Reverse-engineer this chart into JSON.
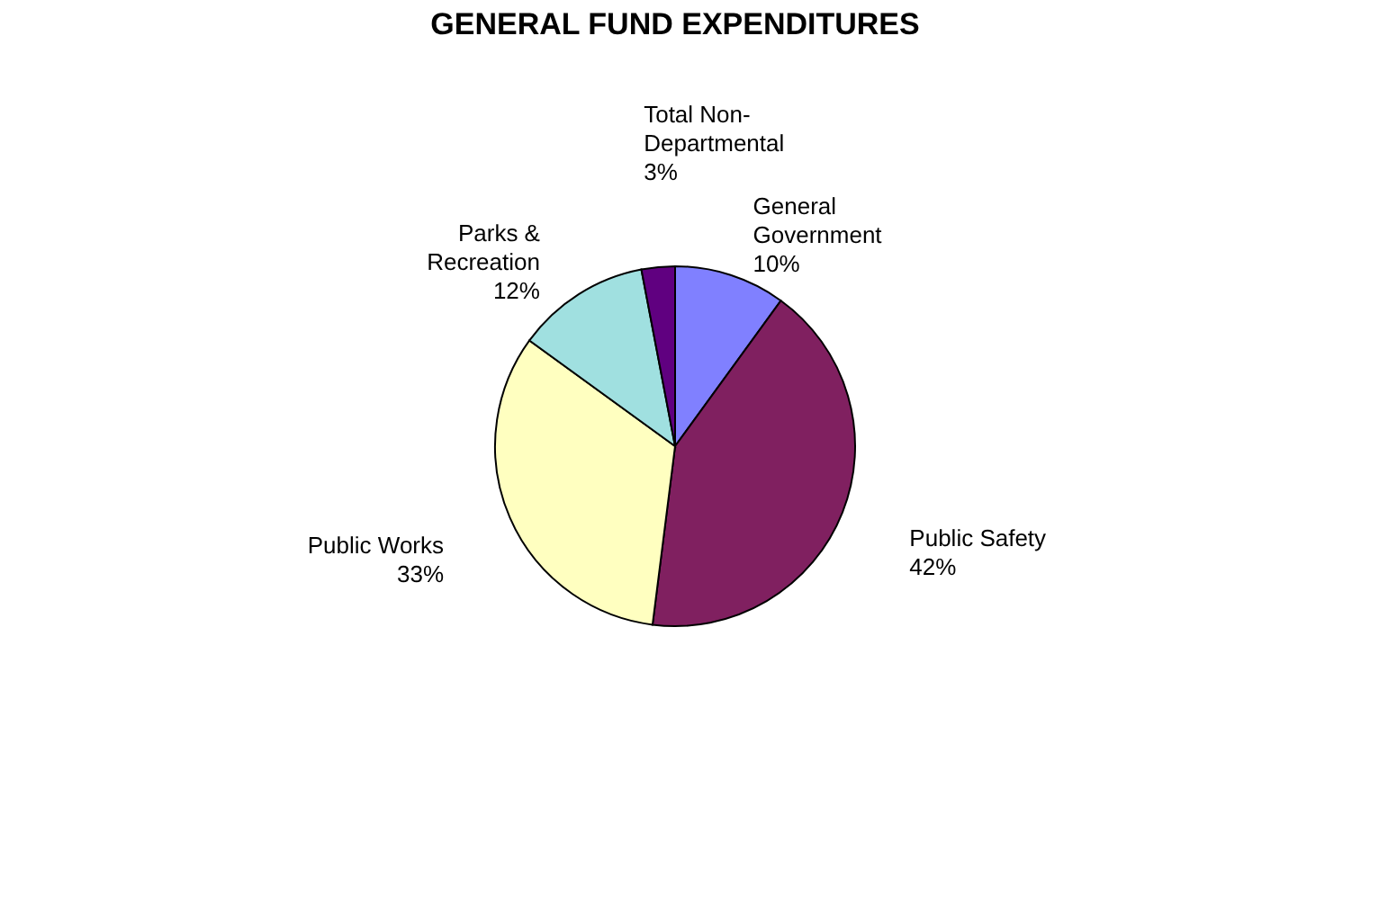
{
  "chart_data": {
    "type": "pie",
    "title": "GENERAL FUND EXPENDITURES",
    "categories": [
      "General Government",
      "Public Safety",
      "Public Works",
      "Parks & Recreation",
      "Total Non-Departmental"
    ],
    "values": [
      10,
      42,
      33,
      12,
      3
    ],
    "value_labels": [
      "10%",
      "42%",
      "33%",
      "12%",
      "3%"
    ],
    "colors": [
      "#8080ff",
      "#802060",
      "#ffffc0",
      "#a0e0e0",
      "#600080"
    ],
    "legend": false
  }
}
